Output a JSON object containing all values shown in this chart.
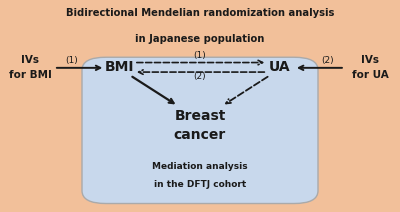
{
  "title_line1": "Bidirectional Mendelian randomization analysis",
  "title_line2": "in Japanese population",
  "bmi_label": "BMI",
  "ua_label": "UA",
  "ivs_bmi_line1": "IVs",
  "ivs_bmi_line2": "for BMI",
  "ivs_ua_line1": "IVs",
  "ivs_ua_line2": "for UA",
  "breast_cancer_line1": "Breast",
  "breast_cancer_line2": "cancer",
  "mediation_line1": "Mediation analysis",
  "mediation_line2": "in the DFTJ cohort",
  "arrow1_label": "(1)",
  "arrow2_label": "(2)",
  "bg_salmon": "#F2C09A",
  "bg_blue": "#C8D8EC",
  "border_color": "#aaaaaa",
  "text_color": "#1a1a1a",
  "arrow_color": "#1a1a1a",
  "fig_w": 4.0,
  "fig_h": 2.12,
  "dpi": 100
}
